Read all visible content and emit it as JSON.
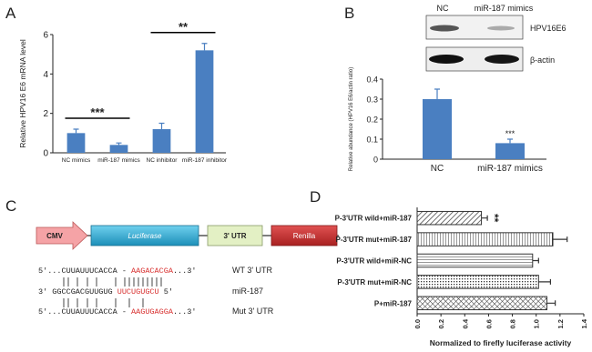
{
  "panel_labels": [
    "A",
    "B",
    "C",
    "D"
  ],
  "blot": {
    "lanes": [
      "NC",
      "miR-187 mimics"
    ],
    "rows": [
      "HPV16E6",
      "β-actin"
    ]
  },
  "construct": {
    "elements": [
      "CMV",
      "Luciferase",
      "3' UTR",
      "Renilla"
    ],
    "sequences": [
      {
        "parts": [
          "5'...CUUAUUUCACCA - ",
          "AAGACACGA",
          "...3'"
        ],
        "label": "WT 3' UTR"
      },
      {
        "parts": [
          "3' GGCCGACGUUGUG ",
          "UUCUGUGCU",
          " 5'"
        ],
        "label": "miR-187"
      },
      {
        "parts": [
          "5'...CUUAUUUCACCA - ",
          "AAGUGAGGA",
          "...3'"
        ],
        "label": "Mut 3' UTR"
      }
    ]
  },
  "chart_data": [
    {
      "type": "bar",
      "y_label": "Relative HPV16 E6 mRNA level",
      "categories": [
        "NC mimics",
        "miR-187 mimics",
        "NC inhibitor",
        "miR-187 inhibitor"
      ],
      "values": [
        1.0,
        0.4,
        1.2,
        5.2
      ],
      "errors": [
        0.2,
        0.1,
        0.3,
        0.35
      ],
      "color": "#4a7fc1",
      "significance": [
        "***",
        "**"
      ],
      "ylim": [
        0,
        6
      ],
      "yticks": [
        0,
        2,
        4,
        6
      ]
    },
    {
      "type": "bar",
      "y_label": "Relative abundance (HPV16 E6/actin ratio)",
      "categories": [
        "NC",
        "miR-187 mimics"
      ],
      "values": [
        0.3,
        0.08
      ],
      "errors": [
        0.05,
        0.02
      ],
      "color": "#4a7fc1",
      "value_annotations": [
        null,
        "***"
      ],
      "ylim": [
        0,
        0.4
      ],
      "yticks": [
        0,
        0.1,
        0.2,
        0.3,
        0.4
      ]
    },
    {
      "type": "hbar",
      "x_label": "Normalized to firefly luciferase activity",
      "categories": [
        "P-3'UTR wild+miR-187",
        "P-3'UTR mut+miR-187",
        "P-3'UTR wild+miR-NC",
        "P-3'UTR mut+miR-NC",
        "P+miR-187"
      ],
      "values": [
        0.54,
        1.14,
        0.97,
        1.02,
        1.09
      ],
      "errors": [
        0.05,
        0.12,
        0.05,
        0.1,
        0.07
      ],
      "color": "#333333",
      "value_annotations": [
        "**",
        null,
        null,
        null,
        null
      ],
      "xlim": [
        0,
        1.4
      ],
      "xticks": [
        {
          "value": 0,
          "label": "0.0"
        },
        0.2,
        0.4,
        0.6,
        0.8,
        {
          "value": 1,
          "label": "1.0"
        },
        1.2,
        1.4
      ]
    }
  ]
}
